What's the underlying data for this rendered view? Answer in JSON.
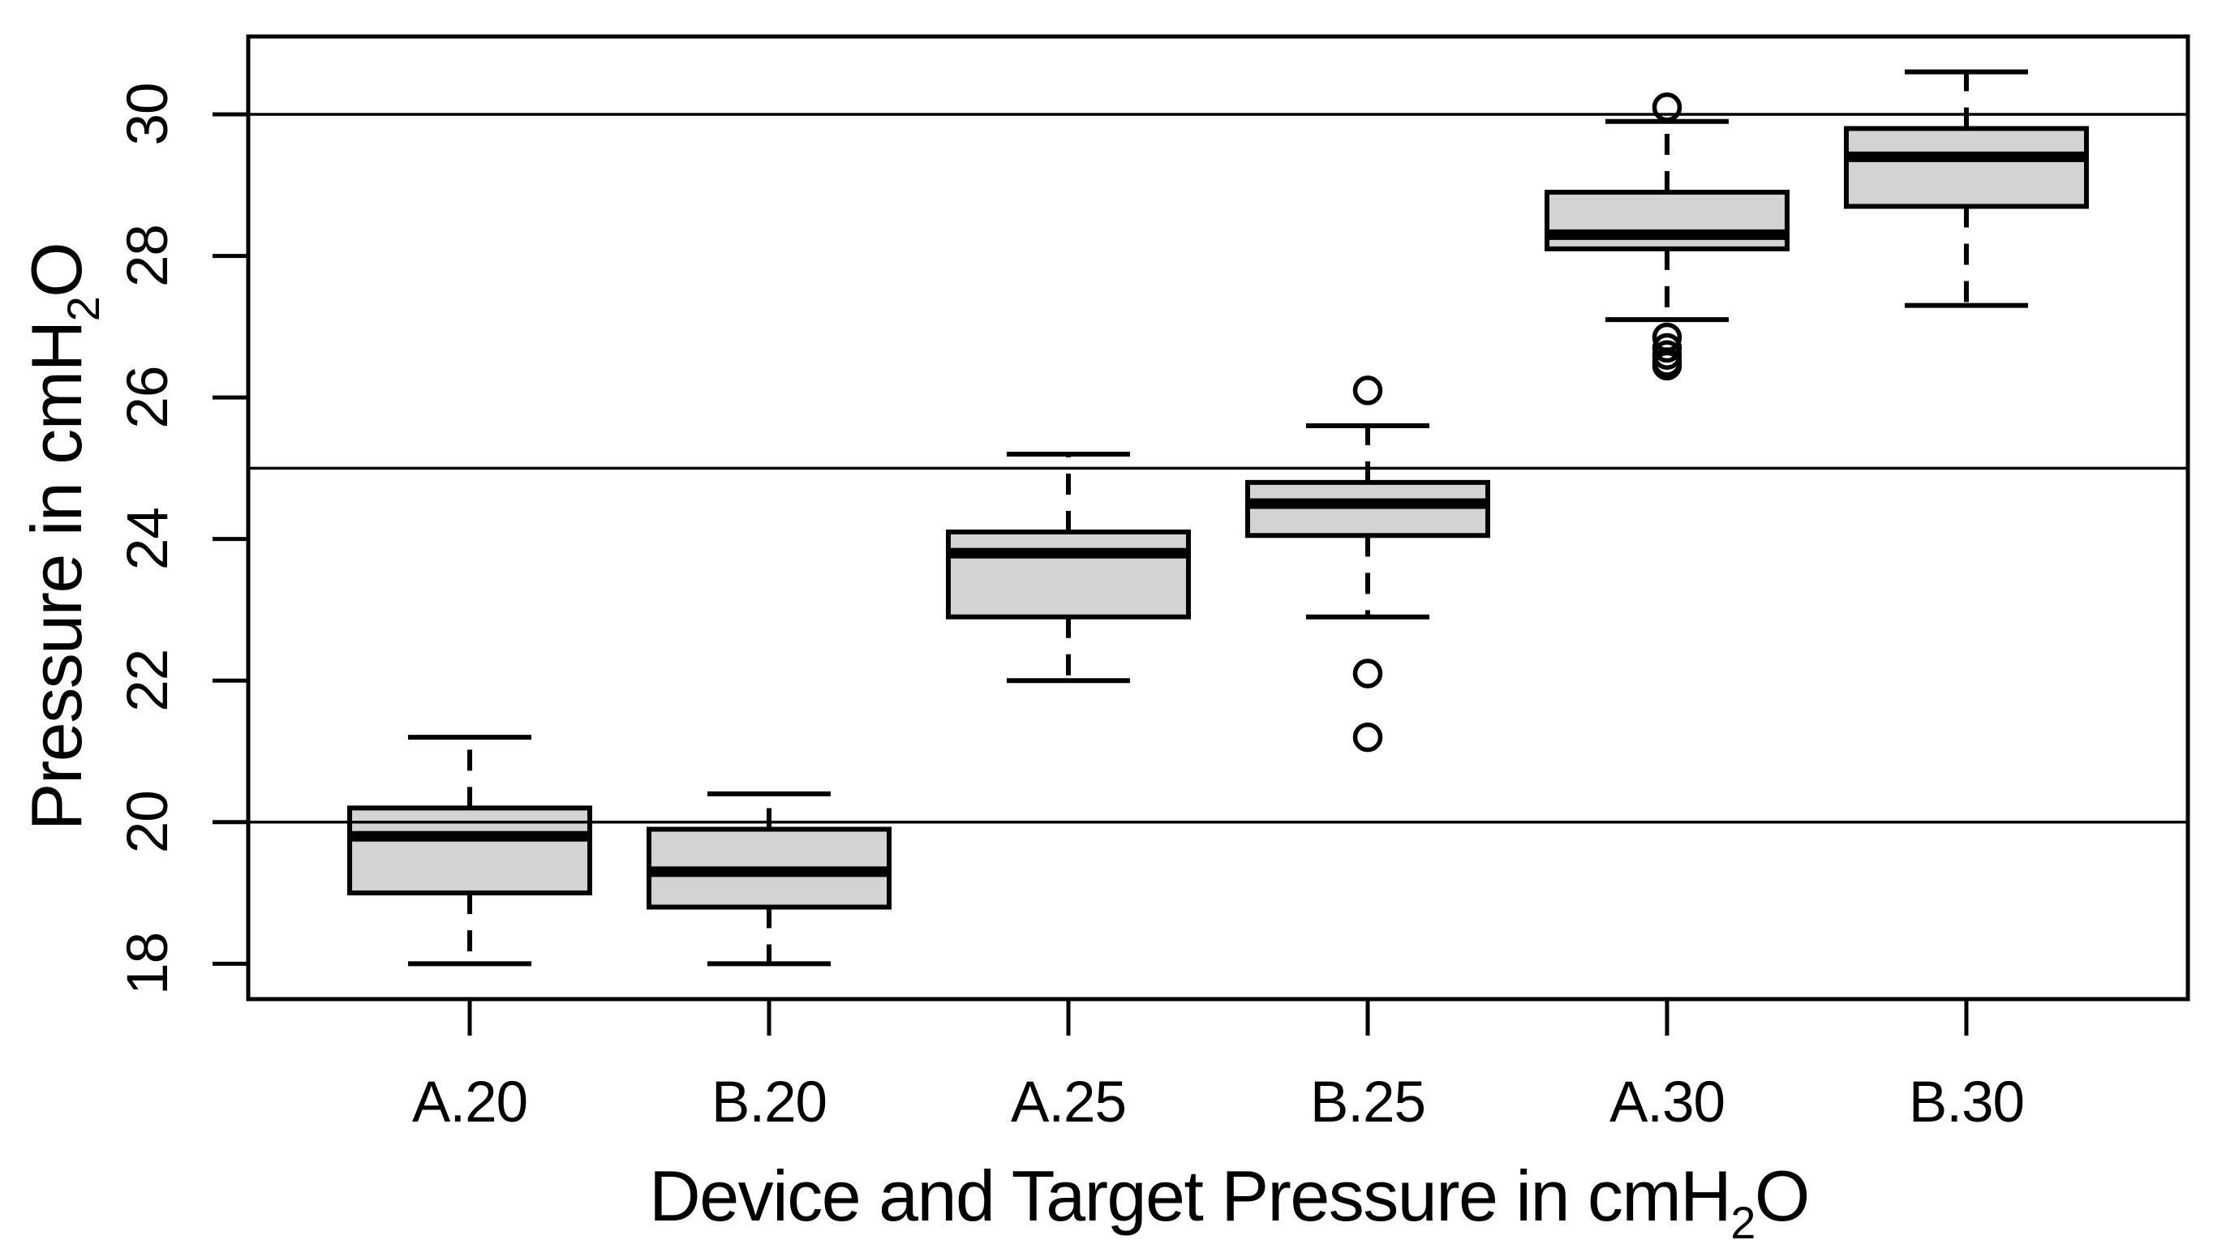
{
  "figure": {
    "background": "#ffffff",
    "stroke_color": "#000000",
    "box_fill": "#d3d3d3"
  },
  "chart_data": {
    "type": "boxplot",
    "title": "",
    "xlabel": "Device and Target Pressure in cmH₂O",
    "ylabel": "Pressure in cmH₂O",
    "categories": [
      "A.20",
      "B.20",
      "A.25",
      "B.25",
      "A.30",
      "B.30"
    ],
    "yticks": [
      "18",
      "20",
      "22",
      "24",
      "26",
      "28",
      "30"
    ],
    "ytick_values": [
      18,
      20,
      22,
      24,
      26,
      28,
      30
    ],
    "ylim": [
      17.5,
      31.1
    ],
    "reference_lines": [
      20,
      25,
      30
    ],
    "grid": "horizontal reference lines at 20, 25, 30 only",
    "legend": "none",
    "series": [
      {
        "label": "A.20",
        "whisker_low": 18.0,
        "q1": 19.0,
        "median": 19.8,
        "q3": 20.2,
        "whisker_high": 21.2,
        "outliers": []
      },
      {
        "label": "B.20",
        "whisker_low": 18.0,
        "q1": 18.8,
        "median": 19.3,
        "q3": 19.9,
        "whisker_high": 20.4,
        "outliers": []
      },
      {
        "label": "A.25",
        "whisker_low": 22.0,
        "q1": 22.9,
        "median": 23.8,
        "q3": 24.1,
        "whisker_high": 25.2,
        "outliers": []
      },
      {
        "label": "B.25",
        "whisker_low": 22.9,
        "q1": 24.05,
        "median": 24.5,
        "q3": 24.8,
        "whisker_high": 25.6,
        "outliers": [
          26.1,
          22.1,
          21.2
        ]
      },
      {
        "label": "A.30",
        "whisker_low": 27.1,
        "q1": 28.1,
        "median": 28.3,
        "q3": 28.9,
        "whisker_high": 29.9,
        "outliers": [
          30.1,
          26.85,
          26.7,
          26.6,
          26.5,
          26.45
        ]
      },
      {
        "label": "B.30",
        "whisker_low": 27.3,
        "q1": 28.7,
        "median": 29.4,
        "q3": 29.8,
        "whisker_high": 30.6,
        "outliers": []
      }
    ]
  }
}
